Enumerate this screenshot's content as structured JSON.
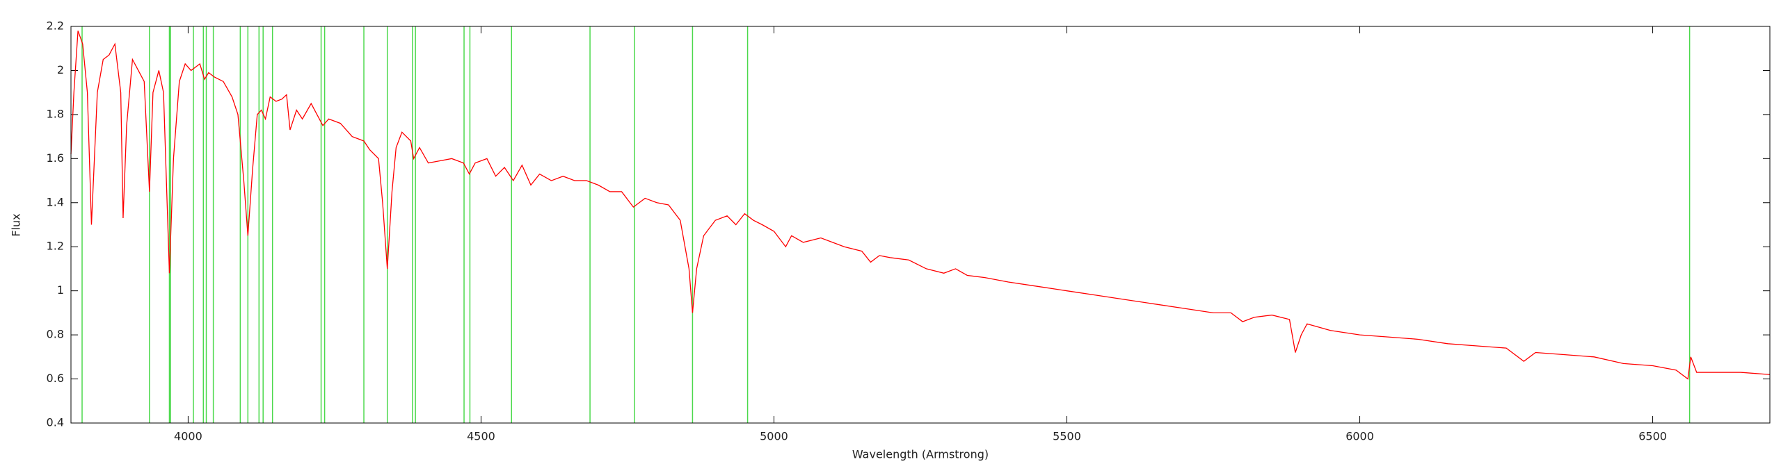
{
  "chart_data": {
    "type": "line",
    "xlabel": "Wavelength (Armstrong)",
    "ylabel": "Flux",
    "xlim": [
      3800,
      6700
    ],
    "ylim": [
      0.4,
      2.2
    ],
    "xticks": [
      4000,
      4500,
      5000,
      5500,
      6000,
      6500
    ],
    "yticks": [
      0.4,
      0.6,
      0.8,
      1,
      1.2,
      1.4,
      1.6,
      1.8,
      2,
      2.2
    ],
    "line_color": "#4cd94c",
    "lines": [
      3819,
      3934,
      3968,
      3970,
      4009,
      4026,
      4031,
      4043,
      4089,
      4102,
      4121,
      4128,
      4144,
      4227,
      4233,
      4300,
      4340,
      4383,
      4388,
      4471,
      4481,
      4552,
      4686,
      4762,
      4861,
      4955,
      6563
    ],
    "series": [
      {
        "color": "#ff0000",
        "x": [
          3800,
          3805,
          3812,
          3820,
          3828,
          3835,
          3845,
          3855,
          3865,
          3875,
          3885,
          3889,
          3895,
          3905,
          3915,
          3925,
          3934,
          3940,
          3950,
          3958,
          3968,
          3975,
          3985,
          3995,
          4005,
          4015,
          4020,
          4028,
          4035,
          4045,
          4060,
          4075,
          4085,
          4095,
          4102,
          4110,
          4118,
          4125,
          4132,
          4140,
          4150,
          4160,
          4168,
          4174,
          4185,
          4195,
          4210,
          4220,
          4230,
          4240,
          4260,
          4280,
          4300,
          4310,
          4325,
          4332,
          4340,
          4348,
          4355,
          4365,
          4380,
          4385,
          4395,
          4410,
          4430,
          4450,
          4470,
          4480,
          4490,
          4510,
          4525,
          4540,
          4555,
          4570,
          4585,
          4600,
          4620,
          4640,
          4660,
          4680,
          4700,
          4720,
          4740,
          4760,
          4780,
          4800,
          4820,
          4840,
          4855,
          4861,
          4868,
          4880,
          4900,
          4920,
          4935,
          4950,
          4965,
          4980,
          5000,
          5020,
          5030,
          5050,
          5080,
          5100,
          5120,
          5150,
          5165,
          5180,
          5200,
          5230,
          5260,
          5290,
          5310,
          5330,
          5360,
          5400,
          5450,
          5500,
          5550,
          5600,
          5650,
          5700,
          5750,
          5780,
          5800,
          5820,
          5850,
          5880,
          5890,
          5900,
          5910,
          5950,
          6000,
          6050,
          6100,
          6150,
          6200,
          6250,
          6280,
          6300,
          6350,
          6400,
          6450,
          6500,
          6540,
          6560,
          6565,
          6575,
          6600,
          6650,
          6700
        ],
        "values": [
          1.62,
          1.9,
          2.18,
          2.12,
          1.9,
          1.3,
          1.9,
          2.05,
          2.07,
          2.12,
          1.9,
          1.33,
          1.75,
          2.05,
          2.0,
          1.95,
          1.45,
          1.9,
          2.0,
          1.9,
          1.08,
          1.6,
          1.95,
          2.03,
          2.0,
          2.02,
          2.03,
          1.96,
          1.99,
          1.97,
          1.95,
          1.88,
          1.8,
          1.5,
          1.25,
          1.55,
          1.8,
          1.82,
          1.78,
          1.88,
          1.86,
          1.87,
          1.89,
          1.73,
          1.82,
          1.78,
          1.85,
          1.8,
          1.75,
          1.78,
          1.76,
          1.7,
          1.68,
          1.64,
          1.6,
          1.4,
          1.1,
          1.45,
          1.65,
          1.72,
          1.68,
          1.6,
          1.65,
          1.58,
          1.59,
          1.6,
          1.58,
          1.53,
          1.58,
          1.6,
          1.52,
          1.56,
          1.5,
          1.57,
          1.48,
          1.53,
          1.5,
          1.52,
          1.5,
          1.5,
          1.48,
          1.45,
          1.45,
          1.38,
          1.42,
          1.4,
          1.39,
          1.32,
          1.1,
          0.9,
          1.1,
          1.25,
          1.32,
          1.34,
          1.3,
          1.35,
          1.32,
          1.3,
          1.27,
          1.2,
          1.25,
          1.22,
          1.24,
          1.22,
          1.2,
          1.18,
          1.13,
          1.16,
          1.15,
          1.14,
          1.1,
          1.08,
          1.1,
          1.07,
          1.06,
          1.04,
          1.02,
          1.0,
          0.98,
          0.96,
          0.94,
          0.92,
          0.9,
          0.9,
          0.86,
          0.88,
          0.89,
          0.87,
          0.72,
          0.8,
          0.85,
          0.82,
          0.8,
          0.79,
          0.78,
          0.76,
          0.75,
          0.74,
          0.68,
          0.72,
          0.71,
          0.7,
          0.67,
          0.66,
          0.64,
          0.6,
          0.7,
          0.63,
          0.63,
          0.63,
          0.62
        ]
      }
    ]
  }
}
